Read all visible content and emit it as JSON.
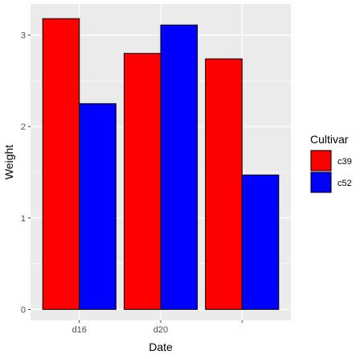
{
  "chart_data": {
    "type": "bar",
    "title": "",
    "xlabel": "Date",
    "ylabel": "Weight",
    "categories": [
      "d16",
      "d20",
      ""
    ],
    "series": [
      {
        "name": "c39",
        "color": "#ff0000",
        "values": [
          3.18,
          2.8,
          2.74
        ]
      },
      {
        "name": "c52",
        "color": "#0000ff",
        "values": [
          2.25,
          3.11,
          1.47
        ]
      }
    ],
    "ylim": [
      -0.12,
      3.34
    ],
    "yticks": [
      0,
      1,
      2,
      3
    ],
    "yticklabels": [
      "0",
      "1",
      "2",
      "3"
    ],
    "grid": true,
    "panel_background": "#ebebeb",
    "grid_color": "#ffffff",
    "bar_outline": "#000000",
    "legend": {
      "title": "Cultivar",
      "placement": "right",
      "entries": [
        "c39",
        "c52"
      ]
    }
  }
}
